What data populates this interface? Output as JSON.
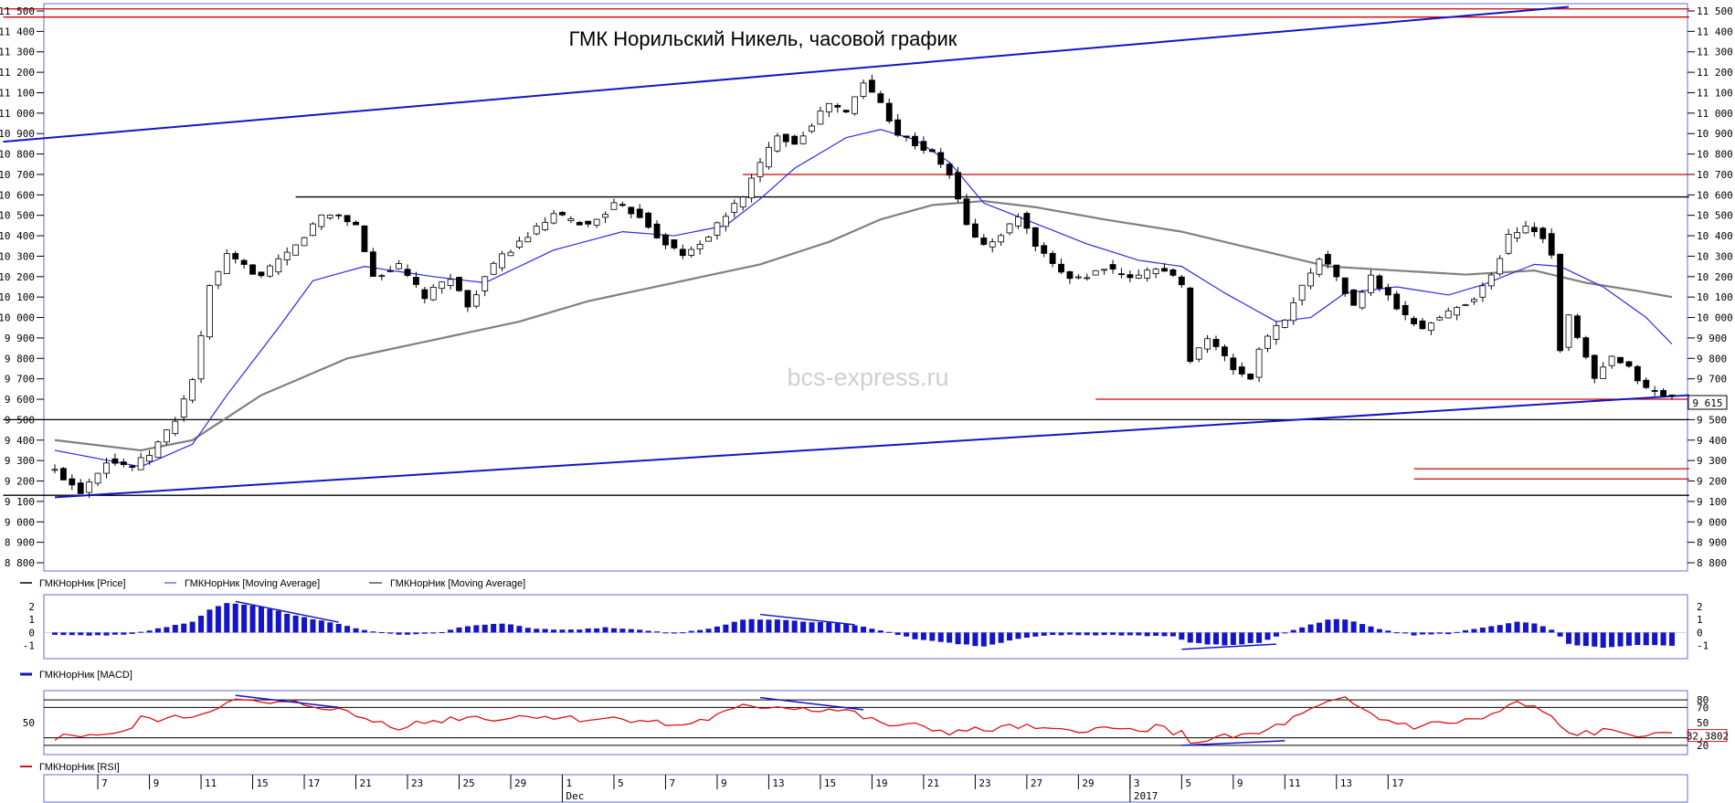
{
  "chart_data": {
    "type": "candlestick",
    "title": "ГМК Норильский Никель, часовой график",
    "watermark": "bcs-express.ru",
    "price_pane": {
      "y_ticks": [
        "11 500",
        "11 400",
        "11 300",
        "11 200",
        "11 100",
        "11 000",
        "10 900",
        "10 800",
        "10 700",
        "10 600",
        "10 500",
        "10 400",
        "10 300",
        "10 200",
        "10 100",
        "10 000",
        "9 900",
        "9 800",
        "9 700",
        "9 600",
        "9 500",
        "9 400",
        "9 300",
        "9 200",
        "9 100",
        "9 000",
        "8 900",
        "8 800"
      ],
      "ylim": [
        8800,
        11500
      ],
      "last_price_label": "9 615",
      "last_price": 9615,
      "legend": [
        {
          "name": "ГМКНорНик [Price]",
          "color": "#404040"
        },
        {
          "name": "ГМКНорНик [Moving Average]",
          "color": "#2a2af0"
        },
        {
          "name": "ГМКНорНик [Moving Average]",
          "color": "#808080"
        }
      ],
      "close_anchors": [
        [
          0,
          9250
        ],
        [
          3,
          9150
        ],
        [
          6,
          9300
        ],
        [
          9,
          9270
        ],
        [
          11,
          9330
        ],
        [
          14,
          9500
        ],
        [
          16,
          9700
        ],
        [
          17,
          9900
        ],
        [
          18,
          10150
        ],
        [
          20,
          10300
        ],
        [
          24,
          10200
        ],
        [
          28,
          10350
        ],
        [
          31,
          10500
        ],
        [
          33,
          10500
        ],
        [
          35,
          10450
        ],
        [
          37,
          10200
        ],
        [
          40,
          10250
        ],
        [
          43,
          10100
        ],
        [
          46,
          10200
        ],
        [
          48,
          10050
        ],
        [
          50,
          10200
        ],
        [
          52,
          10300
        ],
        [
          55,
          10400
        ],
        [
          58,
          10500
        ],
        [
          62,
          10450
        ],
        [
          65,
          10550
        ],
        [
          68,
          10500
        ],
        [
          70,
          10400
        ],
        [
          73,
          10300
        ],
        [
          76,
          10400
        ],
        [
          78,
          10500
        ],
        [
          80,
          10600
        ],
        [
          82,
          10750
        ],
        [
          84,
          10900
        ],
        [
          86,
          10850
        ],
        [
          88,
          10950
        ],
        [
          90,
          11050
        ],
        [
          92,
          11000
        ],
        [
          94,
          11150
        ],
        [
          96,
          11050
        ],
        [
          98,
          10900
        ],
        [
          100,
          10850
        ],
        [
          102,
          10800
        ],
        [
          104,
          10700
        ],
        [
          106,
          10450
        ],
        [
          108,
          10350
        ],
        [
          110,
          10400
        ],
        [
          112,
          10500
        ],
        [
          114,
          10350
        ],
        [
          116,
          10250
        ],
        [
          118,
          10200
        ],
        [
          120,
          10200
        ],
        [
          122,
          10250
        ],
        [
          124,
          10200
        ],
        [
          126,
          10200
        ],
        [
          128,
          10250
        ],
        [
          130,
          10200
        ],
        [
          131,
          10150
        ],
        [
          132,
          9800
        ],
        [
          134,
          9900
        ],
        [
          137,
          9750
        ],
        [
          139,
          9700
        ],
        [
          140,
          9850
        ],
        [
          143,
          10000
        ],
        [
          145,
          10150
        ],
        [
          147,
          10300
        ],
        [
          149,
          10200
        ],
        [
          151,
          10050
        ],
        [
          153,
          10200
        ],
        [
          155,
          10100
        ],
        [
          157,
          10000
        ],
        [
          159,
          9950
        ],
        [
          161,
          10000
        ],
        [
          163,
          10050
        ],
        [
          165,
          10100
        ],
        [
          167,
          10200
        ],
        [
          169,
          10400
        ],
        [
          171,
          10450
        ],
        [
          173,
          10400
        ],
        [
          174,
          10300
        ],
        [
          175,
          9850
        ],
        [
          176,
          10000
        ],
        [
          177,
          9900
        ],
        [
          179,
          9700
        ],
        [
          181,
          9800
        ],
        [
          183,
          9750
        ],
        [
          185,
          9650
        ],
        [
          187,
          9620
        ],
        [
          188,
          9615
        ]
      ],
      "ma_fast_anchors": [
        [
          0,
          9350
        ],
        [
          10,
          9270
        ],
        [
          16,
          9380
        ],
        [
          20,
          9620
        ],
        [
          26,
          9950
        ],
        [
          30,
          10180
        ],
        [
          36,
          10250
        ],
        [
          44,
          10200
        ],
        [
          50,
          10170
        ],
        [
          58,
          10330
        ],
        [
          66,
          10420
        ],
        [
          72,
          10400
        ],
        [
          78,
          10450
        ],
        [
          82,
          10580
        ],
        [
          86,
          10730
        ],
        [
          92,
          10880
        ],
        [
          96,
          10920
        ],
        [
          100,
          10870
        ],
        [
          104,
          10760
        ],
        [
          108,
          10560
        ],
        [
          114,
          10460
        ],
        [
          120,
          10360
        ],
        [
          126,
          10280
        ],
        [
          131,
          10250
        ],
        [
          136,
          10120
        ],
        [
          142,
          9980
        ],
        [
          146,
          10000
        ],
        [
          150,
          10120
        ],
        [
          156,
          10150
        ],
        [
          162,
          10110
        ],
        [
          166,
          10160
        ],
        [
          172,
          10260
        ],
        [
          175,
          10250
        ],
        [
          180,
          10150
        ],
        [
          185,
          10000
        ],
        [
          188,
          9870
        ]
      ],
      "ma_slow_anchors": [
        [
          0,
          9400
        ],
        [
          10,
          9350
        ],
        [
          16,
          9400
        ],
        [
          24,
          9620
        ],
        [
          34,
          9800
        ],
        [
          44,
          9890
        ],
        [
          54,
          9980
        ],
        [
          62,
          10080
        ],
        [
          72,
          10170
        ],
        [
          82,
          10260
        ],
        [
          90,
          10370
        ],
        [
          96,
          10480
        ],
        [
          102,
          10550
        ],
        [
          108,
          10570
        ],
        [
          114,
          10540
        ],
        [
          122,
          10480
        ],
        [
          131,
          10420
        ],
        [
          140,
          10330
        ],
        [
          148,
          10250
        ],
        [
          156,
          10230
        ],
        [
          164,
          10210
        ],
        [
          172,
          10230
        ],
        [
          178,
          10170
        ],
        [
          184,
          10130
        ],
        [
          188,
          10100
        ]
      ],
      "trendlines": [
        {
          "color": "#1414c8",
          "from": [
            -6,
            10860
          ],
          "to": [
            176,
            11520
          ]
        },
        {
          "color": "#1414c8",
          "from": [
            0,
            9120
          ],
          "to": [
            190,
            9620
          ]
        }
      ],
      "hlines": [
        {
          "color": "#cc0000",
          "y": 11510,
          "from": -6,
          "to": 190
        },
        {
          "color": "#cc0000",
          "y": 11470,
          "from": -6,
          "to": 190
        },
        {
          "color": "#cc0000",
          "y": 10700,
          "from": 80,
          "to": 190
        },
        {
          "color": "#000000",
          "y": 10590,
          "from": 28,
          "to": 190
        },
        {
          "color": "#000000",
          "y": 9500,
          "from": -6,
          "to": 190
        },
        {
          "color": "#000000",
          "y": 9130,
          "from": -6,
          "to": 190
        },
        {
          "color": "#cc0000",
          "y": 9600,
          "from": 121,
          "to": 190
        },
        {
          "color": "#cc0000",
          "y": 9260,
          "from": 158,
          "to": 190
        },
        {
          "color": "#cc0000",
          "y": 9210,
          "from": 158,
          "to": 190
        }
      ]
    },
    "macd_pane": {
      "legend": "ГМКНорНик [MACD]",
      "y_ticks": [
        "2",
        "1",
        "0",
        "-1"
      ],
      "ylim": [
        -1.6,
        2.5
      ],
      "anchors": [
        [
          0,
          -0.2
        ],
        [
          8,
          -0.2
        ],
        [
          12,
          0.3
        ],
        [
          16,
          0.8
        ],
        [
          18,
          1.8
        ],
        [
          20,
          2.3
        ],
        [
          24,
          2.0
        ],
        [
          28,
          1.3
        ],
        [
          32,
          0.8
        ],
        [
          36,
          0.2
        ],
        [
          40,
          -0.2
        ],
        [
          44,
          -0.1
        ],
        [
          48,
          0.5
        ],
        [
          52,
          0.7
        ],
        [
          56,
          0.3
        ],
        [
          60,
          0.2
        ],
        [
          64,
          0.4
        ],
        [
          68,
          0.2
        ],
        [
          72,
          -0.1
        ],
        [
          76,
          0.3
        ],
        [
          80,
          1.0
        ],
        [
          84,
          1.0
        ],
        [
          88,
          0.8
        ],
        [
          92,
          0.7
        ],
        [
          96,
          0.2
        ],
        [
          100,
          -0.5
        ],
        [
          104,
          -0.8
        ],
        [
          108,
          -1.1
        ],
        [
          112,
          -0.5
        ],
        [
          116,
          -0.2
        ],
        [
          120,
          -0.2
        ],
        [
          124,
          -0.2
        ],
        [
          130,
          -0.3
        ],
        [
          132,
          -0.8
        ],
        [
          136,
          -1.0
        ],
        [
          140,
          -0.8
        ],
        [
          144,
          0.2
        ],
        [
          148,
          1.0
        ],
        [
          150,
          1.0
        ],
        [
          154,
          0.3
        ],
        [
          158,
          -0.2
        ],
        [
          162,
          -0.1
        ],
        [
          166,
          0.4
        ],
        [
          170,
          0.8
        ],
        [
          172,
          0.7
        ],
        [
          174,
          0.2
        ],
        [
          176,
          -0.9
        ],
        [
          180,
          -1.2
        ],
        [
          184,
          -1.0
        ],
        [
          188,
          -1.0
        ]
      ],
      "divergence_lines": [
        {
          "from": [
            21,
            2.4
          ],
          "to": [
            33,
            0.8
          ]
        },
        {
          "from": [
            82,
            1.4
          ],
          "to": [
            93,
            0.6
          ]
        },
        {
          "from": [
            131,
            -1.3
          ],
          "to": [
            142,
            -0.9
          ]
        }
      ]
    },
    "rsi_pane": {
      "legend": "ГМКНорНик [RSI]",
      "y_ticks": [
        "80",
        "70",
        "50",
        "32,3802",
        "20"
      ],
      "ylim": [
        15,
        85
      ],
      "last_value_label": "32,3802",
      "levels": [
        80,
        70,
        30,
        20
      ],
      "anchors": [
        [
          0,
          30
        ],
        [
          4,
          35
        ],
        [
          8,
          35
        ],
        [
          10,
          55
        ],
        [
          14,
          55
        ],
        [
          18,
          65
        ],
        [
          20,
          80
        ],
        [
          24,
          75
        ],
        [
          28,
          75
        ],
        [
          32,
          70
        ],
        [
          36,
          55
        ],
        [
          40,
          45
        ],
        [
          44,
          52
        ],
        [
          48,
          58
        ],
        [
          52,
          55
        ],
        [
          56,
          60
        ],
        [
          60,
          55
        ],
        [
          64,
          55
        ],
        [
          68,
          55
        ],
        [
          72,
          45
        ],
        [
          76,
          55
        ],
        [
          80,
          70
        ],
        [
          84,
          72
        ],
        [
          88,
          68
        ],
        [
          92,
          66
        ],
        [
          96,
          48
        ],
        [
          100,
          45
        ],
        [
          104,
          38
        ],
        [
          108,
          40
        ],
        [
          112,
          45
        ],
        [
          116,
          38
        ],
        [
          120,
          42
        ],
        [
          124,
          40
        ],
        [
          128,
          44
        ],
        [
          131,
          35
        ],
        [
          132,
          25
        ],
        [
          136,
          30
        ],
        [
          140,
          35
        ],
        [
          144,
          55
        ],
        [
          148,
          75
        ],
        [
          150,
          80
        ],
        [
          154,
          55
        ],
        [
          158,
          45
        ],
        [
          162,
          50
        ],
        [
          166,
          55
        ],
        [
          170,
          75
        ],
        [
          172,
          70
        ],
        [
          174,
          55
        ],
        [
          176,
          35
        ],
        [
          180,
          38
        ],
        [
          184,
          35
        ],
        [
          186,
          32
        ],
        [
          188,
          32
        ]
      ],
      "divergence_lines": [
        {
          "from": [
            21,
            86
          ],
          "to": [
            33,
            70
          ]
        },
        {
          "from": [
            82,
            83
          ],
          "to": [
            94,
            67
          ]
        },
        {
          "from": [
            131,
            20
          ],
          "to": [
            143,
            26
          ]
        }
      ]
    },
    "x_axis": {
      "n_bars": 189,
      "ticks": [
        {
          "label": "7",
          "bar": 5
        },
        {
          "label": "9",
          "bar": 11
        },
        {
          "label": "11",
          "bar": 17
        },
        {
          "label": "15",
          "bar": 23
        },
        {
          "label": "17",
          "bar": 29
        },
        {
          "label": "21",
          "bar": 35
        },
        {
          "label": "23",
          "bar": 41
        },
        {
          "label": "25",
          "bar": 47
        },
        {
          "label": "29",
          "bar": 53
        },
        {
          "label": "1",
          "bar": 59
        },
        {
          "label": "5",
          "bar": 65
        },
        {
          "label": "7",
          "bar": 71
        },
        {
          "label": "9",
          "bar": 77
        },
        {
          "label": "13",
          "bar": 83
        },
        {
          "label": "15",
          "bar": 89
        },
        {
          "label": "19",
          "bar": 95
        },
        {
          "label": "21",
          "bar": 101
        },
        {
          "label": "23",
          "bar": 107
        },
        {
          "label": "27",
          "bar": 113
        },
        {
          "label": "29",
          "bar": 119
        },
        {
          "label": "3",
          "bar": 125
        },
        {
          "label": "5",
          "bar": 131
        },
        {
          "label": "9",
          "bar": 137
        },
        {
          "label": "11",
          "bar": 143
        },
        {
          "label": "13",
          "bar": 149
        },
        {
          "label": "17",
          "bar": 155
        }
      ],
      "period_labels": [
        {
          "label": "Dec",
          "bar": 59
        },
        {
          "label": "2017",
          "bar": 125
        }
      ]
    }
  }
}
